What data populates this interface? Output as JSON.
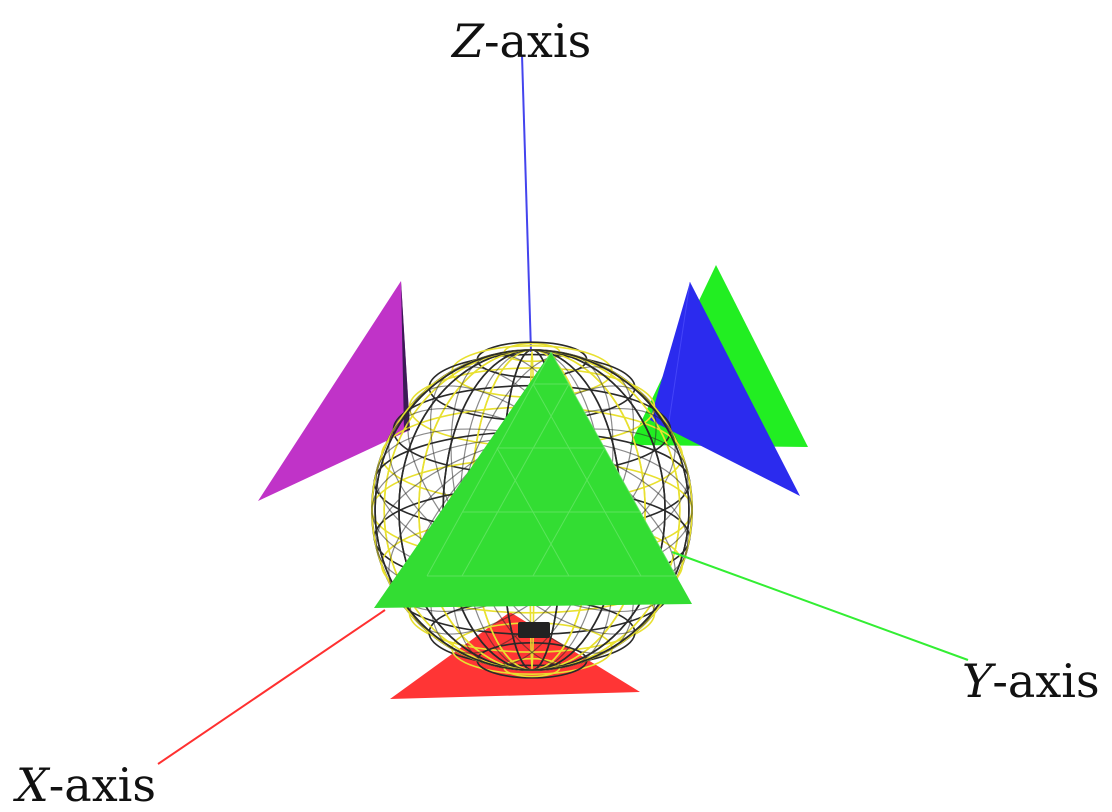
{
  "axes": {
    "x": {
      "variable": "X",
      "suffix": "-axis",
      "color": "#ff3030"
    },
    "y": {
      "variable": "Y",
      "suffix": "-axis",
      "color": "#33ee33"
    },
    "z": {
      "variable": "Z",
      "suffix": "-axis",
      "color": "#4444ee"
    }
  },
  "objects": {
    "sphere": {
      "wire_color_dark": "#2a2a2a",
      "wire_color_light": "#e8e030"
    },
    "triangles": [
      {
        "name": "front-green",
        "color": "#33dd33"
      },
      {
        "name": "back-green",
        "color": "#22ee22"
      },
      {
        "name": "blue",
        "color": "#2b2bee"
      },
      {
        "name": "magenta",
        "color": "#c033c8"
      },
      {
        "name": "red",
        "color": "#ff3535"
      }
    ]
  }
}
